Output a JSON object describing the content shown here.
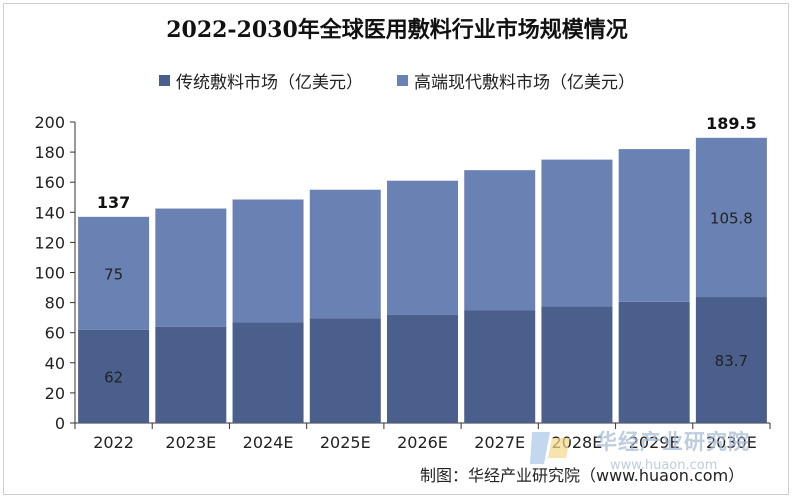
{
  "chart_data": {
    "type": "bar",
    "stacked": true,
    "title": "2022-2030年全球医用敷料行业市场规模情况",
    "categories": [
      "2022",
      "2023E",
      "2024E",
      "2025E",
      "2026E",
      "2027E",
      "2028E",
      "2029E",
      "2030E"
    ],
    "series": [
      {
        "name": "传统敷料市场（亿美元）",
        "color": "#4a5f8c",
        "values": [
          62,
          64,
          67,
          69.5,
          72,
          75,
          77.5,
          80.5,
          83.7
        ]
      },
      {
        "name": "高端现代敷料市场（亿美元）",
        "color": "#6a82b3",
        "values": [
          75,
          78.5,
          81.5,
          85.5,
          89,
          93,
          97.5,
          101.5,
          105.8
        ]
      }
    ],
    "totals": [
      137,
      142.5,
      148.5,
      155,
      161,
      168,
      175,
      182,
      189.5
    ],
    "data_labels": [
      {
        "category": "2022",
        "series": 0,
        "text": "62"
      },
      {
        "category": "2022",
        "series": 1,
        "text": "75"
      },
      {
        "category": "2030E",
        "series": 0,
        "text": "83.7"
      },
      {
        "category": "2030E",
        "series": 1,
        "text": "105.8"
      }
    ],
    "total_labels": [
      {
        "category": "2022",
        "text": "137"
      },
      {
        "category": "2030E",
        "text": "189.5"
      }
    ],
    "ylim": [
      0,
      200
    ],
    "yticks": [
      0,
      20,
      40,
      60,
      80,
      100,
      120,
      140,
      160,
      180,
      200
    ],
    "xlabel": "",
    "ylabel": "",
    "legend_position": "top",
    "grid": false
  },
  "footer": {
    "source": "制图：华经产业研究院（www.huaon.com）"
  },
  "watermark": {
    "text": "华经产业研究院",
    "url": "www.huaon.com"
  }
}
